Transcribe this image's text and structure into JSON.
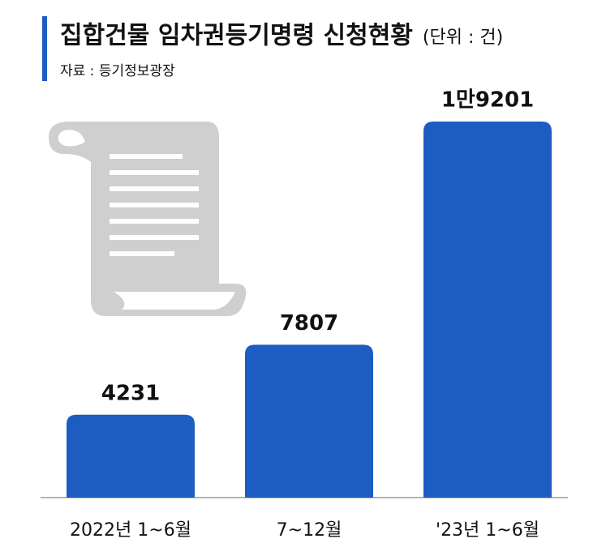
{
  "chart_data": {
    "type": "bar",
    "title": "집합건물 임차권등기명령 신청현황",
    "unit": "(단위 : 건)",
    "source": "자료 : 등기정보광장",
    "categories": [
      "2022년 1~6월",
      "7~12월",
      "'23년 1~6월"
    ],
    "values": [
      4231,
      7807,
      19201
    ],
    "value_labels": [
      "4231",
      "7807",
      "1만9201"
    ],
    "color": "#1d5cc0"
  }
}
